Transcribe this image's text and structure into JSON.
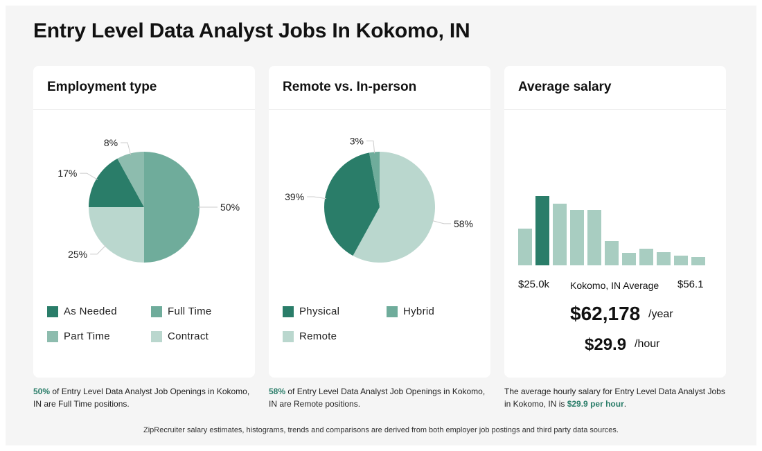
{
  "page": {
    "title": "Entry Level Data Analyst Jobs In Kokomo, IN",
    "footer": "ZipRecruiter salary estimates, histograms, trends and comparisons are derived from both employer job postings and third party data sources."
  },
  "colors": {
    "dark": "#2a7d69",
    "mid": "#6fac9b",
    "light": "#8dbcae",
    "pale": "#bad7ce",
    "bar_pale": "#a8cdc1"
  },
  "employment": {
    "title": "Employment type",
    "caption_highlight": "50%",
    "caption_text": " of Entry Level Data Analyst Job Openings in Kokomo, IN are Full Time positions.",
    "legend": [
      {
        "label": "As Needed",
        "color": "#2a7d69"
      },
      {
        "label": "Full Time",
        "color": "#6fac9b"
      },
      {
        "label": "Part Time",
        "color": "#8dbcae"
      },
      {
        "label": "Contract",
        "color": "#bad7ce"
      }
    ]
  },
  "remote": {
    "title": "Remote vs. In-person",
    "caption_highlight": "58%",
    "caption_text": " of Entry Level Data Analyst Job Openings in Kokomo, IN are Remote positions.",
    "legend": [
      {
        "label": "Physical",
        "color": "#2a7d69"
      },
      {
        "label": "Hybrid",
        "color": "#6fac9b"
      },
      {
        "label": "Remote",
        "color": "#bad7ce"
      }
    ]
  },
  "salary": {
    "title": "Average salary",
    "min_label": "$25.0k",
    "mid_label": "Kokomo, IN Average",
    "max_label": "$56.1",
    "yearly": "$62,178",
    "yearly_unit": "/year",
    "hourly": "$29.9",
    "hourly_unit": "/hour",
    "caption_text": "The average hourly salary for Entry Level Data Analyst Jobs in Kokomo, IN is ",
    "caption_highlight": "$29.9 per hour",
    "caption_end": "."
  },
  "chart_data": [
    {
      "type": "pie",
      "title": "Employment type",
      "slices": [
        {
          "name": "Full Time",
          "value": 50,
          "label": "50%",
          "color": "#6fac9b"
        },
        {
          "name": "Contract",
          "value": 25,
          "label": "25%",
          "color": "#bad7ce"
        },
        {
          "name": "As Needed",
          "value": 17,
          "label": "17%",
          "color": "#2a7d69"
        },
        {
          "name": "Part Time",
          "value": 8,
          "label": "8%",
          "color": "#8dbcae"
        }
      ]
    },
    {
      "type": "pie",
      "title": "Remote vs. In-person",
      "slices": [
        {
          "name": "Remote",
          "value": 58,
          "label": "58%",
          "color": "#bad7ce"
        },
        {
          "name": "Physical",
          "value": 39,
          "label": "39%",
          "color": "#2a7d69"
        },
        {
          "name": "Hybrid",
          "value": 3,
          "label": "3%",
          "color": "#6fac9b"
        }
      ]
    },
    {
      "type": "bar",
      "title": "Average salary",
      "values": [
        53,
        100,
        89,
        80,
        80,
        35,
        18,
        24,
        19,
        14,
        12
      ],
      "highlight_index": 1,
      "ylim": [
        0,
        100
      ]
    }
  ]
}
